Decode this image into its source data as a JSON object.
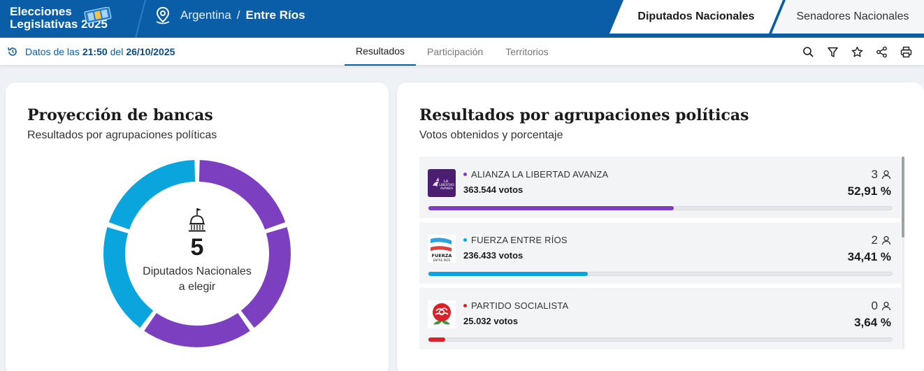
{
  "header": {
    "brand_line1": "Elecciones",
    "brand_line2": "Legislativas 2025",
    "country": "Argentina",
    "separator": "/",
    "province": "Entre Ríos",
    "chamber_tabs": [
      {
        "label": "Diputados Nacionales",
        "active": true
      },
      {
        "label": "Senadores Nacionales",
        "active": false
      }
    ]
  },
  "subbar": {
    "update_prefix": "Datos de las",
    "update_time": "21:50",
    "update_mid": "del",
    "update_date": "26/10/2025",
    "tabs": [
      {
        "label": "Resultados",
        "active": true
      },
      {
        "label": "Participación",
        "active": false
      },
      {
        "label": "Territorios",
        "active": false
      }
    ],
    "tools": [
      "search-icon",
      "filter-icon",
      "star-icon",
      "share-icon",
      "print-icon"
    ]
  },
  "projection": {
    "title": "Proyección de bancas",
    "subtitle": "Resultados por agrupaciones políticas",
    "total": "5",
    "label_line1": "Diputados Nacionales",
    "label_line2": "a elegir",
    "seats": [
      {
        "party": "ALIANZA LA LIBERTAD AVANZA",
        "seats": 3,
        "color": "#7b3fbf"
      },
      {
        "party": "FUERZA ENTRE RÍOS",
        "seats": 2,
        "color": "#0aa5dc"
      }
    ]
  },
  "results": {
    "title": "Resultados por agrupaciones políticas",
    "subtitle": "Votos obtenidos y porcentaje",
    "parties": [
      {
        "name": "ALIANZA LA LIBERTAD AVANZA",
        "votes": "363.544 votos",
        "seats": "3",
        "pct": "52,91 %",
        "pct_value": 52.91,
        "color": "#7b3fbf",
        "logo": "lla-logo"
      },
      {
        "name": "FUERZA ENTRE RÍOS",
        "votes": "236.433 votos",
        "seats": "2",
        "pct": "34,41 %",
        "pct_value": 34.41,
        "color": "#0aa5dc",
        "logo": "fer-logo"
      },
      {
        "name": "PARTIDO SOCIALISTA",
        "votes": "25.032 votos",
        "seats": "0",
        "pct": "3,64 %",
        "pct_value": 3.64,
        "color": "#d8232a",
        "logo": "ps-rose-logo"
      }
    ]
  }
}
